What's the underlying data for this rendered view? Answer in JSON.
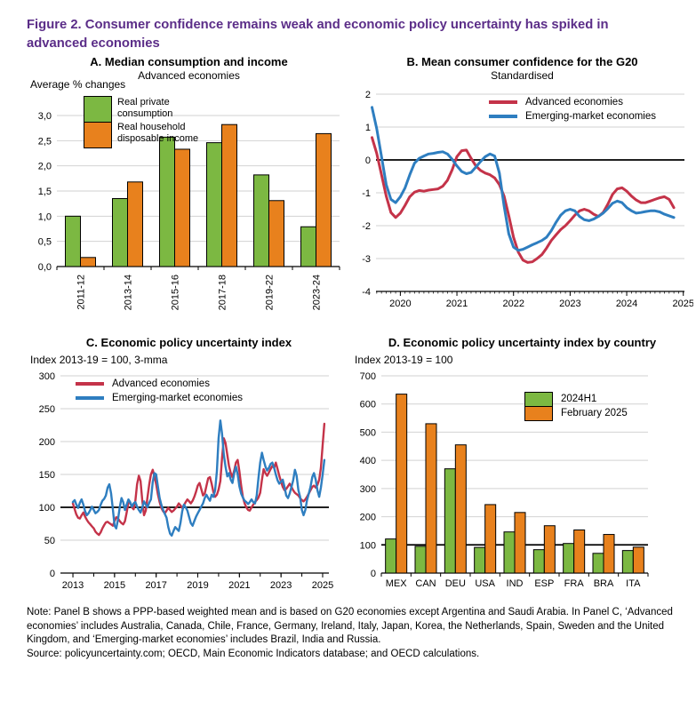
{
  "figure": {
    "title": "Figure 2. Consumer confidence remains weak and economic policy uncertainty has spiked in advanced economies",
    "title_color": "#5b2d88"
  },
  "colors": {
    "green": "#7cb842",
    "orange": "#e8811d",
    "red": "#c43349",
    "blue": "#2e7ec0",
    "grid": "#d2d2d2",
    "axis": "#000000"
  },
  "panels": {
    "a": {
      "title": "A. Median consumption and income",
      "subtitle": "Advanced economies",
      "unit": "Average % changes",
      "legend": [
        "Real private consumption",
        "Real household disposable income"
      ]
    },
    "b": {
      "title": "B. Mean consumer confidence for the G20",
      "subtitle": "Standardised",
      "legend": [
        "Advanced economies",
        "Emerging-market economies"
      ]
    },
    "c": {
      "title": "C. Economic policy uncertainty index",
      "unit": "Index 2013-19 = 100, 3-mma",
      "legend": [
        "Advanced economies",
        "Emerging-market economies"
      ]
    },
    "d": {
      "title": "D. Economic policy uncertainty index by country",
      "unit": "Index 2013-19 = 100",
      "legend": [
        "2024H1",
        "February 2025"
      ]
    }
  },
  "note": "Note: Panel B shows a PPP-based weighted mean and is based on G20 economies except Argentina and Saudi Arabia. In Panel C, ‘Advanced economies’ includes Australia, Canada, Chile, France, Germany, Ireland, Italy, Japan, Korea, the Netherlands, Spain, Sweden and the United Kingdom, and ‘Emerging-market economies’ includes Brazil, India and Russia.",
  "source": "Source: policyuncertainty.com; OECD, Main Economic Indicators database; and OECD calculations.",
  "chart_data": [
    {
      "panel": "A",
      "type": "bar",
      "title": "A. Median consumption and income",
      "subtitle": "Advanced economies",
      "ylabel": "Average % changes",
      "categories": [
        "2011-12",
        "2013-14",
        "2015-16",
        "2017-18",
        "2019-22",
        "2023-24"
      ],
      "series": [
        {
          "name": "Real private consumption",
          "color_key": "green",
          "values": [
            1.0,
            1.35,
            2.57,
            2.46,
            1.82,
            0.79
          ]
        },
        {
          "name": "Real household disposable income",
          "color_key": "orange",
          "values": [
            0.18,
            1.68,
            2.33,
            2.82,
            1.31,
            2.64
          ]
        }
      ],
      "ylim": [
        0,
        3.0
      ],
      "ytick_step": 0.5,
      "ytick_labels": [
        "0,0",
        "0,5",
        "1,0",
        "1,5",
        "2,0",
        "2,5",
        "3,0"
      ],
      "grid": true,
      "legend_position": "top-left"
    },
    {
      "panel": "B",
      "type": "line",
      "title": "B. Mean consumer confidence for the G20",
      "subtitle": "Standardised",
      "ylim": [
        -4,
        2
      ],
      "ytick_step": 1,
      "refline": 0,
      "xlim": [
        2019.57,
        2025.02
      ],
      "xticks": [
        2020,
        2021,
        2022,
        2023,
        2024,
        2025
      ],
      "minor_ticks": "month",
      "x_start": 2019.5,
      "x_step": 0.0833333,
      "grid": true,
      "legend_position": "top-right",
      "series": [
        {
          "name": "Advanced economies",
          "color_key": "red",
          "values": [
            0.68,
            0.2,
            -0.45,
            -1.1,
            -1.6,
            -1.75,
            -1.62,
            -1.38,
            -1.12,
            -0.98,
            -0.93,
            -0.95,
            -0.92,
            -0.9,
            -0.88,
            -0.8,
            -0.62,
            -0.3,
            0.1,
            0.28,
            0.3,
            0.05,
            -0.18,
            -0.32,
            -0.4,
            -0.45,
            -0.55,
            -0.75,
            -1.1,
            -1.7,
            -2.35,
            -2.8,
            -3.05,
            -3.12,
            -3.1,
            -3.0,
            -2.88,
            -2.68,
            -2.45,
            -2.28,
            -2.12,
            -2.0,
            -1.85,
            -1.68,
            -1.55,
            -1.5,
            -1.55,
            -1.65,
            -1.72,
            -1.6,
            -1.35,
            -1.05,
            -0.88,
            -0.85,
            -0.95,
            -1.1,
            -1.22,
            -1.3,
            -1.3,
            -1.25,
            -1.2,
            -1.15,
            -1.12,
            -1.2,
            -1.45
          ]
        },
        {
          "name": "Emerging-market economies",
          "color_key": "blue",
          "values": [
            1.6,
            0.95,
            0.1,
            -0.75,
            -1.2,
            -1.3,
            -1.12,
            -0.85,
            -0.45,
            -0.1,
            0.05,
            0.12,
            0.18,
            0.2,
            0.23,
            0.25,
            0.18,
            0.02,
            -0.18,
            -0.35,
            -0.42,
            -0.38,
            -0.22,
            -0.05,
            0.1,
            0.18,
            0.12,
            -0.4,
            -1.4,
            -2.25,
            -2.65,
            -2.75,
            -2.72,
            -2.65,
            -2.58,
            -2.52,
            -2.45,
            -2.35,
            -2.15,
            -1.9,
            -1.68,
            -1.55,
            -1.5,
            -1.55,
            -1.72,
            -1.82,
            -1.85,
            -1.8,
            -1.72,
            -1.62,
            -1.48,
            -1.32,
            -1.25,
            -1.3,
            -1.45,
            -1.55,
            -1.62,
            -1.6,
            -1.57,
            -1.55,
            -1.55,
            -1.58,
            -1.65,
            -1.7,
            -1.75
          ]
        }
      ]
    },
    {
      "panel": "C",
      "type": "line",
      "title": "C. Economic policy uncertainty index",
      "ylabel": "Index 2013-19 = 100, 3-mma",
      "ylim": [
        0,
        300
      ],
      "ytick_step": 50,
      "refline": 100,
      "xlim": [
        2012.4,
        2025.3
      ],
      "xticks": [
        2013,
        2015,
        2017,
        2019,
        2021,
        2023,
        2025
      ],
      "minor_ticks": "year",
      "x_start": 2013.0,
      "x_step": 0.0833333,
      "grid": true,
      "legend_position": "top-left",
      "series": [
        {
          "name": "Advanced economies",
          "color_key": "red",
          "values": [
            106,
            97,
            89,
            84,
            83,
            88,
            92,
            86,
            81,
            77,
            74,
            71,
            68,
            63,
            60,
            58,
            62,
            68,
            73,
            77,
            78,
            76,
            74,
            72,
            79,
            85,
            83,
            79,
            76,
            74,
            79,
            92,
            108,
            107,
            100,
            97,
            110,
            135,
            148,
            140,
            110,
            88,
            95,
            115,
            135,
            150,
            157,
            148,
            135,
            120,
            108,
            99,
            94,
            91,
            95,
            99,
            96,
            93,
            95,
            98,
            101,
            106,
            103,
            99,
            103,
            108,
            112,
            109,
            106,
            110,
            116,
            124,
            133,
            137,
            128,
            118,
            121,
            133,
            144,
            146,
            136,
            123,
            116,
            119,
            127,
            140,
            175,
            205,
            198,
            180,
            163,
            152,
            146,
            156,
            168,
            172,
            155,
            133,
            116,
            106,
            100,
            96,
            95,
            100,
            104,
            108,
            111,
            115,
            122,
            142,
            158,
            152,
            148,
            153,
            158,
            163,
            160,
            168,
            158,
            148,
            139,
            131,
            126,
            128,
            132,
            136,
            131,
            126,
            122,
            120,
            118,
            114,
            111,
            109,
            112,
            116,
            121,
            126,
            131,
            133,
            130,
            134,
            142,
            160,
            195,
            227
          ]
        },
        {
          "name": "Emerging-market economies",
          "color_key": "blue",
          "values": [
            108,
            111,
            104,
            99,
            107,
            112,
            104,
            94,
            88,
            91,
            96,
            101,
            96,
            91,
            93,
            96,
            104,
            110,
            113,
            118,
            130,
            135,
            121,
            98,
            72,
            68,
            82,
            100,
            114,
            108,
            96,
            104,
            112,
            108,
            101,
            106,
            108,
            101,
            96,
            92,
            100,
            109,
            104,
            100,
            107,
            112,
            138,
            152,
            150,
            132,
            114,
            104,
            96,
            90,
            84,
            70,
            60,
            57,
            64,
            70,
            67,
            64,
            76,
            94,
            104,
            100,
            95,
            85,
            76,
            72,
            79,
            86,
            91,
            96,
            101,
            106,
            114,
            119,
            114,
            110,
            119,
            116,
            126,
            155,
            205,
            232,
            212,
            180,
            162,
            147,
            152,
            142,
            137,
            152,
            162,
            150,
            132,
            121,
            115,
            110,
            108,
            105,
            108,
            112,
            108,
            106,
            118,
            145,
            168,
            183,
            172,
            162,
            156,
            160,
            166,
            168,
            160,
            150,
            141,
            136,
            139,
            142,
            131,
            118,
            114,
            121,
            131,
            141,
            157,
            148,
            126,
            116,
            96,
            88,
            96,
            111,
            121,
            131,
            146,
            152,
            142,
            126,
            116,
            130,
            150,
            172
          ]
        }
      ]
    },
    {
      "panel": "D",
      "type": "bar",
      "title": "D. Economic policy uncertainty index by country",
      "ylabel": "Index 2013-19 = 100",
      "categories": [
        "MEX",
        "CAN",
        "DEU",
        "USA",
        "IND",
        "ESP",
        "FRA",
        "BRA",
        "ITA"
      ],
      "series": [
        {
          "name": "2024H1",
          "color_key": "green",
          "values": [
            121,
            95,
            370,
            91,
            146,
            83,
            105,
            70,
            80
          ]
        },
        {
          "name": "February 2025",
          "color_key": "orange",
          "values": [
            635,
            530,
            455,
            243,
            215,
            168,
            153,
            137,
            92
          ]
        }
      ],
      "ylim": [
        0,
        700
      ],
      "ytick_step": 100,
      "refline": 100,
      "grid": true,
      "legend_position": "top-right"
    }
  ]
}
